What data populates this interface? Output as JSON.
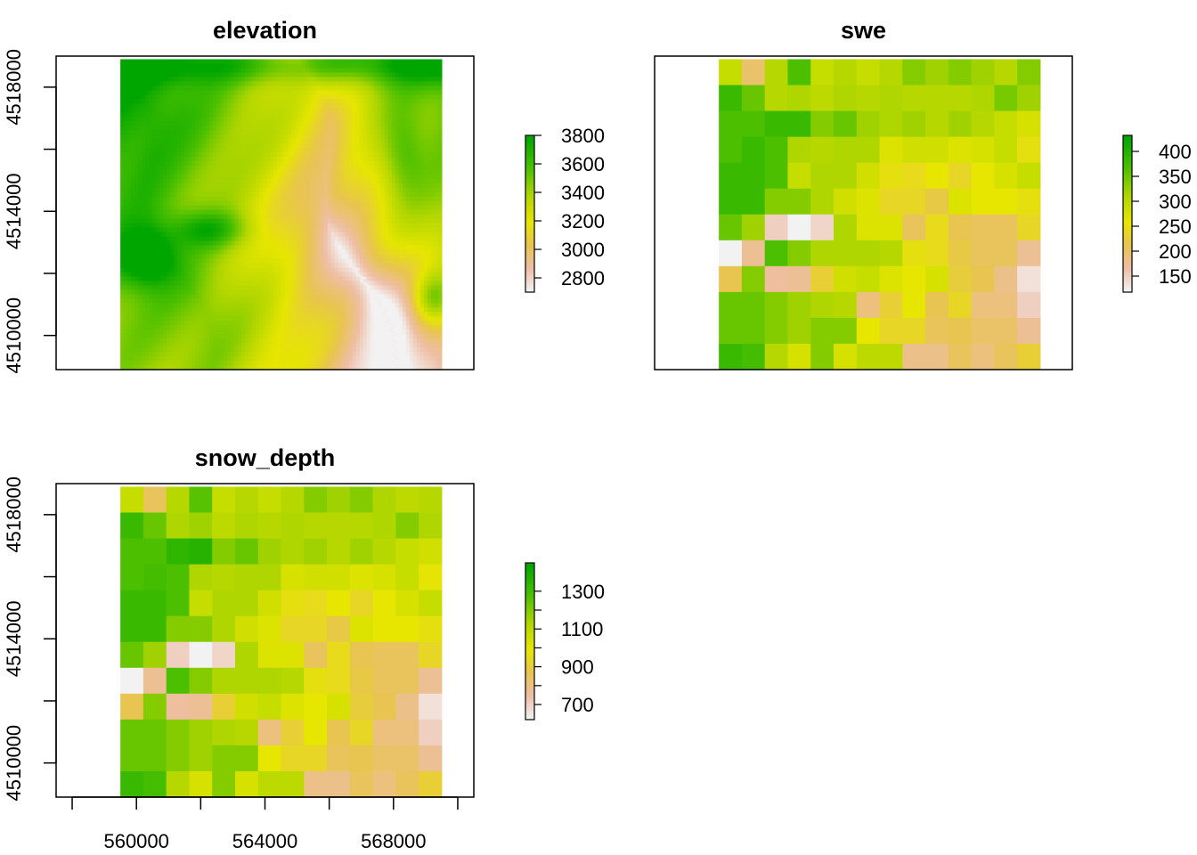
{
  "chart_data": [
    {
      "type": "heatmap",
      "title": "elevation",
      "xlim": [
        557500,
        570500
      ],
      "ylim": [
        4508900,
        4519000
      ],
      "raster_extent": {
        "x": [
          559500,
          569500
        ],
        "y": [
          4508900,
          4518900
        ]
      },
      "x_ticks": [
        560000,
        564000,
        568000
      ],
      "x_ticks_minor": [
        558000,
        562000,
        566000,
        570000
      ],
      "x_tick_labels_shown": false,
      "y_ticks": [
        4510000,
        4514000,
        4518000
      ],
      "y_ticks_minor": [
        4512000,
        4516000
      ],
      "y_tick_labels_shown": true,
      "legend": {
        "position": "right",
        "breaks": [
          2800,
          3000,
          3200,
          3400,
          3600,
          3800
        ],
        "range": [
          2700,
          3800
        ],
        "palette": [
          "#f2f2f2",
          "#eeb99f",
          "#e8c32e",
          "#e6e600",
          "#a8d600",
          "#4cc000",
          "#00a600"
        ]
      }
    },
    {
      "type": "heatmap",
      "title": "swe",
      "xlim": [
        557500,
        570500
      ],
      "ylim": [
        4508900,
        4519000
      ],
      "raster_extent": {
        "x": [
          559500,
          569500
        ],
        "y": [
          4508900,
          4518900
        ]
      },
      "grid": {
        "nrow": 12,
        "ncol": 14
      },
      "cells": [
        [
          55,
          25,
          60,
          80,
          55,
          60,
          55,
          60,
          70,
          65,
          70,
          65,
          60,
          70
        ],
        [
          85,
          75,
          60,
          62,
          58,
          62,
          60,
          62,
          60,
          60,
          60,
          62,
          72,
          65
        ],
        [
          80,
          80,
          85,
          85,
          70,
          75,
          65,
          62,
          65,
          60,
          65,
          60,
          55,
          50
        ],
        [
          80,
          85,
          80,
          62,
          60,
          62,
          62,
          48,
          52,
          52,
          48,
          50,
          55,
          42
        ],
        [
          85,
          85,
          80,
          55,
          62,
          62,
          52,
          42,
          40,
          45,
          38,
          45,
          50,
          55
        ],
        [
          85,
          85,
          70,
          70,
          62,
          52,
          48,
          38,
          38,
          32,
          48,
          45,
          45,
          42
        ],
        [
          75,
          65,
          10,
          0,
          8,
          62,
          48,
          48,
          28,
          40,
          30,
          28,
          28,
          38
        ],
        [
          0,
          18,
          80,
          70,
          62,
          62,
          62,
          60,
          42,
          40,
          32,
          28,
          28,
          18
        ],
        [
          30,
          70,
          16,
          18,
          35,
          52,
          55,
          48,
          45,
          50,
          34,
          30,
          20,
          5
        ],
        [
          75,
          75,
          70,
          65,
          62,
          60,
          22,
          35,
          45,
          30,
          38,
          22,
          22,
          10
        ],
        [
          75,
          75,
          70,
          65,
          70,
          70,
          45,
          38,
          38,
          28,
          30,
          26,
          26,
          18
        ],
        [
          85,
          82,
          60,
          50,
          70,
          50,
          58,
          58,
          20,
          20,
          28,
          22,
          28,
          35
        ]
      ],
      "x_ticks": [
        560000,
        564000,
        568000
      ],
      "x_tick_labels_shown": false,
      "y_ticks": [
        4510000,
        4514000,
        4518000
      ],
      "y_tick_labels_shown": false,
      "legend": {
        "position": "right",
        "tick_labels": [
          "400",
          "350",
          "300",
          "250",
          "200",
          "150"
        ],
        "range": [
          140,
          425
        ],
        "label_clipped_at_page_edge": true
      }
    },
    {
      "type": "heatmap",
      "title": "snow_depth",
      "xlim": [
        557500,
        570500
      ],
      "ylim": [
        4508900,
        4519000
      ],
      "raster_extent": {
        "x": [
          559500,
          569500
        ],
        "y": [
          4508900,
          4518900
        ]
      },
      "grid": {
        "nrow": 12,
        "ncol": 14
      },
      "cells": [
        [
          55,
          28,
          60,
          78,
          55,
          60,
          55,
          60,
          70,
          65,
          70,
          62,
          58,
          60
        ],
        [
          85,
          75,
          62,
          65,
          58,
          62,
          60,
          62,
          60,
          60,
          60,
          62,
          70,
          62
        ],
        [
          80,
          80,
          88,
          90,
          70,
          75,
          65,
          62,
          65,
          60,
          65,
          60,
          55,
          52
        ],
        [
          80,
          82,
          80,
          62,
          60,
          62,
          62,
          50,
          52,
          52,
          48,
          50,
          55,
          44
        ],
        [
          85,
          85,
          80,
          55,
          62,
          62,
          52,
          42,
          40,
          45,
          38,
          45,
          50,
          55
        ],
        [
          85,
          85,
          70,
          70,
          62,
          52,
          48,
          38,
          38,
          32,
          48,
          45,
          45,
          42
        ],
        [
          75,
          65,
          10,
          0,
          8,
          62,
          48,
          48,
          28,
          40,
          30,
          28,
          28,
          38
        ],
        [
          0,
          18,
          80,
          70,
          62,
          62,
          62,
          60,
          42,
          40,
          32,
          28,
          28,
          18
        ],
        [
          30,
          70,
          16,
          18,
          35,
          52,
          55,
          48,
          45,
          50,
          34,
          30,
          20,
          5
        ],
        [
          75,
          75,
          70,
          65,
          62,
          60,
          22,
          35,
          45,
          30,
          38,
          22,
          22,
          10
        ],
        [
          75,
          75,
          70,
          65,
          70,
          70,
          45,
          38,
          38,
          28,
          30,
          26,
          26,
          18
        ],
        [
          85,
          82,
          60,
          50,
          70,
          50,
          58,
          58,
          20,
          20,
          28,
          22,
          28,
          35
        ]
      ],
      "x_ticks": [
        560000,
        564000,
        568000
      ],
      "x_ticks_minor": [
        558000,
        562000,
        566000,
        570000
      ],
      "x_tick_labels_shown": true,
      "y_ticks": [
        4510000,
        4514000,
        4518000
      ],
      "y_ticks_minor": [
        4512000,
        4516000
      ],
      "y_tick_labels_shown": true,
      "legend": {
        "position": "right",
        "breaks": [
          700,
          900,
          1100,
          1300
        ],
        "range": [
          620,
          1450
        ]
      }
    }
  ]
}
